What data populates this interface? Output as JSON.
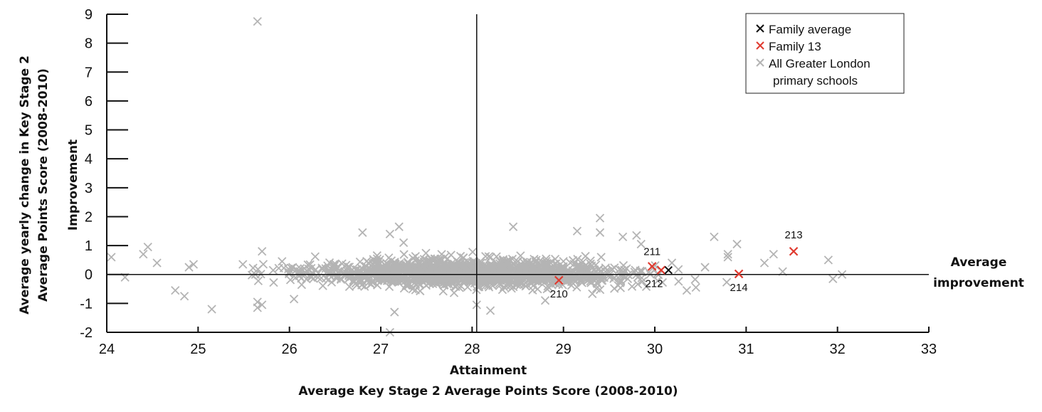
{
  "chart_data": {
    "type": "scatter",
    "title": "",
    "xlabel": "Attainment",
    "xlabel_sub": "Average Key Stage 2 Average Points Score (2008-2010)",
    "ylabel": "Improvement",
    "ylabel_sub": "Average yearly change in Key Stage 2 Average Points Score (2008-2010)",
    "ylabel_sub_lines": [
      "Average yearly change in Key Stage 2",
      "Average Points Score (2008-2010)"
    ],
    "xlim": [
      24,
      33
    ],
    "ylim": [
      -2,
      9
    ],
    "x_ticks": [
      24,
      25,
      26,
      27,
      28,
      29,
      30,
      31,
      32,
      33
    ],
    "y_ticks": [
      -2,
      -1,
      0,
      1,
      2,
      3,
      4,
      5,
      6,
      7,
      8,
      9
    ],
    "grid": false,
    "reference_lines": {
      "vertical_x": 28.05,
      "horizontal_y": 0,
      "horizontal_label": [
        "Average",
        "improvement"
      ]
    },
    "legend": {
      "placement": "top-right",
      "entries": [
        {
          "marker": "x",
          "color": "#111111",
          "label": "Family average"
        },
        {
          "marker": "x",
          "color": "#e03a2f",
          "label": "Family 13"
        },
        {
          "marker": "x",
          "color": "#b4b4b4",
          "label": [
            "All Greater London",
            "primary schools"
          ]
        }
      ]
    },
    "series": [
      {
        "name": "All Greater London primary schools",
        "color": "#b4b4b4",
        "marker": "x",
        "background_density": {
          "count": 1500,
          "x_center": 28.0,
          "x_spread": 1.25,
          "y_center": 0.05,
          "y_spread": 0.32,
          "x_range": [
            25.0,
            31.1
          ]
        },
        "points": [
          [
            25.65,
            8.75
          ],
          [
            24.05,
            0.6
          ],
          [
            24.2,
            -0.1
          ],
          [
            24.4,
            0.7
          ],
          [
            24.45,
            0.95
          ],
          [
            24.55,
            0.4
          ],
          [
            24.75,
            -0.55
          ],
          [
            24.85,
            -0.75
          ],
          [
            24.9,
            0.25
          ],
          [
            25.15,
            -1.2
          ],
          [
            25.65,
            -0.95
          ],
          [
            25.65,
            -1.15
          ],
          [
            25.7,
            0.8
          ],
          [
            25.7,
            -1.05
          ],
          [
            27.1,
            -2.0
          ],
          [
            27.2,
            1.65
          ],
          [
            27.1,
            1.4
          ],
          [
            26.8,
            1.45
          ],
          [
            27.25,
            1.1
          ],
          [
            28.2,
            -1.25
          ],
          [
            28.45,
            1.65
          ],
          [
            29.4,
            1.95
          ],
          [
            29.4,
            1.45
          ],
          [
            29.15,
            1.5
          ],
          [
            29.8,
            1.35
          ],
          [
            29.65,
            1.3
          ],
          [
            29.85,
            1.05
          ],
          [
            30.65,
            1.3
          ],
          [
            30.9,
            1.05
          ],
          [
            30.8,
            0.7
          ],
          [
            31.3,
            0.7
          ],
          [
            31.2,
            0.4
          ],
          [
            31.4,
            0.1
          ],
          [
            31.9,
            0.5
          ],
          [
            31.95,
            -0.15
          ],
          [
            32.05,
            0.0
          ],
          [
            30.45,
            -0.45
          ],
          [
            30.35,
            -0.55
          ],
          [
            28.05,
            -1.05
          ],
          [
            28.8,
            -0.9
          ],
          [
            26.05,
            -0.85
          ],
          [
            27.15,
            -1.3
          ],
          [
            24.95,
            0.35
          ],
          [
            30.8,
            0.6
          ],
          [
            30.55,
            0.25
          ]
        ]
      },
      {
        "name": "Family 13",
        "color": "#e03a2f",
        "marker": "x",
        "points": [
          {
            "x": 28.95,
            "y": -0.2,
            "label": "210"
          },
          {
            "x": 29.97,
            "y": 0.28,
            "label": "211"
          },
          {
            "x": 30.07,
            "y": 0.15,
            "label": "212"
          },
          {
            "x": 31.52,
            "y": 0.8,
            "label": "213"
          },
          {
            "x": 30.92,
            "y": 0.02,
            "label": "214"
          }
        ]
      },
      {
        "name": "Family average",
        "color": "#111111",
        "marker": "x",
        "points": [
          {
            "x": 30.15,
            "y": 0.15
          }
        ]
      }
    ]
  }
}
